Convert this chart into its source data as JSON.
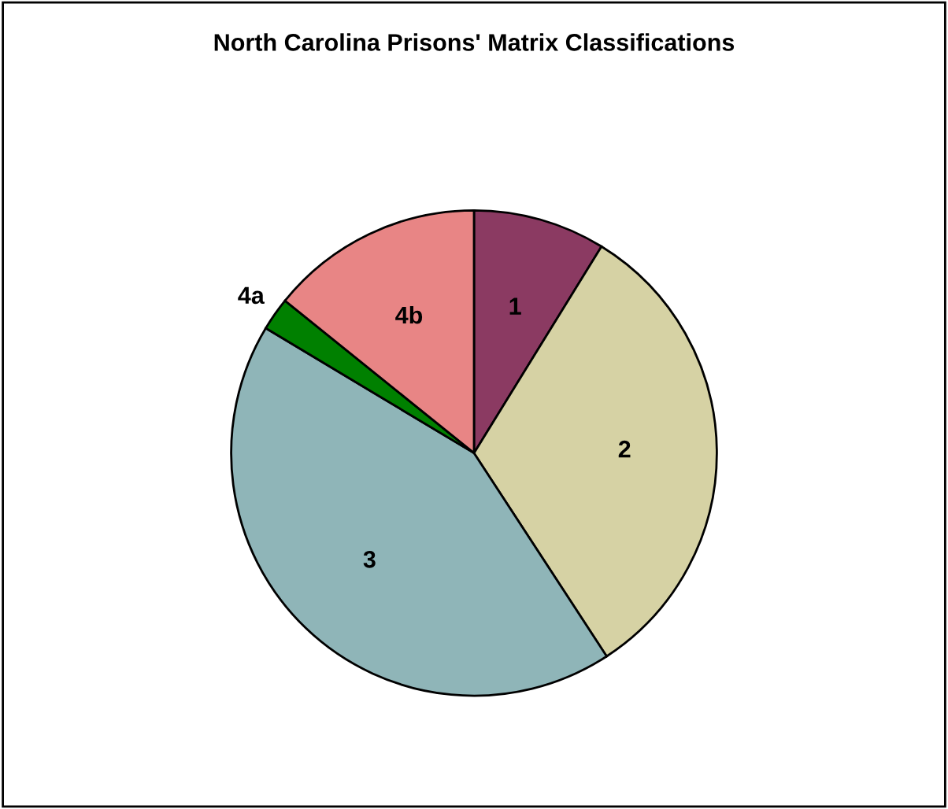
{
  "chart_data": {
    "type": "pie",
    "title": "North Carolina Prisons' Matrix Classifications",
    "categories": [
      "1",
      "2",
      "3",
      "4a",
      "4b"
    ],
    "values": [
      8.8,
      32.0,
      42.8,
      2.2,
      14.2
    ],
    "colors": [
      "#8b3a62",
      "#d6d2a4",
      "#8fb5b8",
      "#008000",
      "#e88585"
    ],
    "legend": false
  }
}
